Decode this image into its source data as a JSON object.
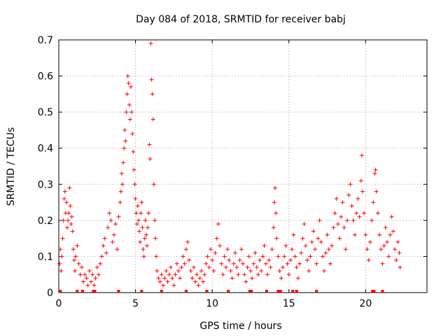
{
  "chart_data": {
    "type": "scatter",
    "title": "Day 084 of 2018, SRMTID for receiver babj",
    "xlabel": "GPS time / hours",
    "ylabel": "SRMTID / TECUs",
    "xlim": [
      0,
      24
    ],
    "ylim": [
      0,
      0.7
    ],
    "x_ticks": [
      0,
      5,
      10,
      15,
      20
    ],
    "x_tick_labels": [
      "0",
      "5",
      "10",
      "15",
      "20"
    ],
    "y_ticks": [
      0,
      0.1,
      0.2,
      0.3,
      0.4,
      0.5,
      0.6,
      0.7
    ],
    "y_tick_labels": [
      "0",
      "0.1",
      "0.2",
      "0.3",
      "0.4",
      "0.5",
      "0.6",
      "0.7"
    ],
    "grid": true,
    "marker": "+",
    "color": "#ff0000",
    "series": [
      {
        "name": "babj",
        "points": [
          [
            0.05,
            0.08
          ],
          [
            0.1,
            0.12
          ],
          [
            0.15,
            0.06
          ],
          [
            0.2,
            0.1
          ],
          [
            0.25,
            0.15
          ],
          [
            0.3,
            0.2
          ],
          [
            0.35,
            0.26
          ],
          [
            0.4,
            0.28
          ],
          [
            0.45,
            0.22
          ],
          [
            0.5,
            0.25
          ],
          [
            0.55,
            0.18
          ],
          [
            0.6,
            0.2
          ],
          [
            0.65,
            0.22
          ],
          [
            0.7,
            0.29
          ],
          [
            0.75,
            0.24
          ],
          [
            0.8,
            0.19
          ],
          [
            0.85,
            0.21
          ],
          [
            0.9,
            0.17
          ],
          [
            0.95,
            0.12
          ],
          [
            1.0,
            0.09
          ],
          [
            1.05,
            0.06
          ],
          [
            1.1,
            0.1
          ],
          [
            1.2,
            0.13
          ],
          [
            1.3,
            0.08
          ],
          [
            1.4,
            0.05
          ],
          [
            1.5,
            0.07
          ],
          [
            1.6,
            0.03
          ],
          [
            1.7,
            0.05
          ],
          [
            1.8,
            0.04
          ],
          [
            1.9,
            0.02
          ],
          [
            2.0,
            0.06
          ],
          [
            2.1,
            0.03
          ],
          [
            2.2,
            0.05
          ],
          [
            2.3,
            0.02
          ],
          [
            2.4,
            0.04
          ],
          [
            2.5,
            0.07
          ],
          [
            2.6,
            0.05
          ],
          [
            2.7,
            0.08
          ],
          [
            2.8,
            0.1
          ],
          [
            2.9,
            0.13
          ],
          [
            3.0,
            0.15
          ],
          [
            3.1,
            0.11
          ],
          [
            3.2,
            0.18
          ],
          [
            3.3,
            0.22
          ],
          [
            3.4,
            0.2
          ],
          [
            3.5,
            0.14
          ],
          [
            3.6,
            0.16
          ],
          [
            3.7,
            0.19
          ],
          [
            3.8,
            0.12
          ],
          [
            3.9,
            0.21
          ],
          [
            4.0,
            0.25
          ],
          [
            4.05,
            0.28
          ],
          [
            4.1,
            0.33
          ],
          [
            4.15,
            0.3
          ],
          [
            4.2,
            0.36
          ],
          [
            4.25,
            0.4
          ],
          [
            4.3,
            0.45
          ],
          [
            4.35,
            0.42
          ],
          [
            4.4,
            0.5
          ],
          [
            4.45,
            0.55
          ],
          [
            4.5,
            0.6
          ],
          [
            4.55,
            0.58
          ],
          [
            4.6,
            0.52
          ],
          [
            4.65,
            0.48
          ],
          [
            4.7,
            0.57
          ],
          [
            4.75,
            0.5
          ],
          [
            4.8,
            0.44
          ],
          [
            4.85,
            0.39
          ],
          [
            4.9,
            0.34
          ],
          [
            4.95,
            0.3
          ],
          [
            5.0,
            0.26
          ],
          [
            5.05,
            0.22
          ],
          [
            5.1,
            0.19
          ],
          [
            5.15,
            0.24
          ],
          [
            5.2,
            0.2
          ],
          [
            5.25,
            0.17
          ],
          [
            5.3,
            0.14
          ],
          [
            5.35,
            0.22
          ],
          [
            5.4,
            0.25
          ],
          [
            5.45,
            0.18
          ],
          [
            5.5,
            0.12
          ],
          [
            5.55,
            0.1
          ],
          [
            5.6,
            0.15
          ],
          [
            5.65,
            0.2
          ],
          [
            5.7,
            0.16
          ],
          [
            5.75,
            0.13
          ],
          [
            5.8,
            0.18
          ],
          [
            5.85,
            0.22
          ],
          [
            5.9,
            0.41
          ],
          [
            5.95,
            0.37
          ],
          [
            6.0,
            0.69
          ],
          [
            6.05,
            0.59
          ],
          [
            6.1,
            0.55
          ],
          [
            6.15,
            0.48
          ],
          [
            6.2,
            0.3
          ],
          [
            6.25,
            0.2
          ],
          [
            6.3,
            0.15
          ],
          [
            6.35,
            0.1
          ],
          [
            6.4,
            0.06
          ],
          [
            6.5,
            0.04
          ],
          [
            6.6,
            0.03
          ],
          [
            6.7,
            0.05
          ],
          [
            6.8,
            0.02
          ],
          [
            6.9,
            0.04
          ],
          [
            7.0,
            0.06
          ],
          [
            7.1,
            0.03
          ],
          [
            7.2,
            0.05
          ],
          [
            7.3,
            0.07
          ],
          [
            7.4,
            0.04
          ],
          [
            7.5,
            0.02
          ],
          [
            7.6,
            0.05
          ],
          [
            7.7,
            0.08
          ],
          [
            7.8,
            0.06
          ],
          [
            7.9,
            0.04
          ],
          [
            8.0,
            0.07
          ],
          [
            8.1,
            0.1
          ],
          [
            8.2,
            0.08
          ],
          [
            8.3,
            0.12
          ],
          [
            8.4,
            0.14
          ],
          [
            8.5,
            0.09
          ],
          [
            8.6,
            0.06
          ],
          [
            8.7,
            0.04
          ],
          [
            8.8,
            0.07
          ],
          [
            8.9,
            0.03
          ],
          [
            9.0,
            0.05
          ],
          [
            9.1,
            0.02
          ],
          [
            9.2,
            0.04
          ],
          [
            9.3,
            0.06
          ],
          [
            9.4,
            0.03
          ],
          [
            9.5,
            0.05
          ],
          [
            9.6,
            0.08
          ],
          [
            9.7,
            0.1
          ],
          [
            9.8,
            0.07
          ],
          [
            9.9,
            0.12
          ],
          [
            10.0,
            0.09
          ],
          [
            10.1,
            0.06
          ],
          [
            10.2,
            0.11
          ],
          [
            10.3,
            0.15
          ],
          [
            10.4,
            0.19
          ],
          [
            10.5,
            0.13
          ],
          [
            10.6,
            0.08
          ],
          [
            10.7,
            0.05
          ],
          [
            10.8,
            0.1
          ],
          [
            10.9,
            0.07
          ],
          [
            11.0,
            0.12
          ],
          [
            11.1,
            0.09
          ],
          [
            11.2,
            0.06
          ],
          [
            11.3,
            0.04
          ],
          [
            11.4,
            0.08
          ],
          [
            11.5,
            0.11
          ],
          [
            11.6,
            0.07
          ],
          [
            11.7,
            0.05
          ],
          [
            11.8,
            0.09
          ],
          [
            11.9,
            0.12
          ],
          [
            12.0,
            0.08
          ],
          [
            12.1,
            0.05
          ],
          [
            12.2,
            0.03
          ],
          [
            12.3,
            0.07
          ],
          [
            12.4,
            0.1
          ],
          [
            12.5,
            0.06
          ],
          [
            12.6,
            0.04
          ],
          [
            12.7,
            0.08
          ],
          [
            12.8,
            0.11
          ],
          [
            12.9,
            0.07
          ],
          [
            13.0,
            0.05
          ],
          [
            13.1,
            0.09
          ],
          [
            13.2,
            0.06
          ],
          [
            13.3,
            0.1
          ],
          [
            13.4,
            0.13
          ],
          [
            13.5,
            0.08
          ],
          [
            13.6,
            0.05
          ],
          [
            13.7,
            0.09
          ],
          [
            13.8,
            0.07
          ],
          [
            13.9,
            0.12
          ],
          [
            14.0,
            0.18
          ],
          [
            14.05,
            0.25
          ],
          [
            14.1,
            0.29
          ],
          [
            14.15,
            0.22
          ],
          [
            14.2,
            0.15
          ],
          [
            14.3,
            0.1
          ],
          [
            14.4,
            0.06
          ],
          [
            14.5,
            0.04
          ],
          [
            14.6,
            0.07
          ],
          [
            14.7,
            0.1
          ],
          [
            14.8,
            0.13
          ],
          [
            14.9,
            0.08
          ],
          [
            15.0,
            0.05
          ],
          [
            15.1,
            0.09
          ],
          [
            15.2,
            0.12
          ],
          [
            15.3,
            0.16
          ],
          [
            15.4,
            0.1
          ],
          [
            15.5,
            0.07
          ],
          [
            15.6,
            0.04
          ],
          [
            15.7,
            0.08
          ],
          [
            15.8,
            0.11
          ],
          [
            15.9,
            0.15
          ],
          [
            16.0,
            0.19
          ],
          [
            16.1,
            0.13
          ],
          [
            16.2,
            0.09
          ],
          [
            16.3,
            0.06
          ],
          [
            16.4,
            0.1
          ],
          [
            16.5,
            0.14
          ],
          [
            16.6,
            0.17
          ],
          [
            16.7,
            0.12
          ],
          [
            16.8,
            0.08
          ],
          [
            16.9,
            0.15
          ],
          [
            17.0,
            0.2
          ],
          [
            17.1,
            0.14
          ],
          [
            17.2,
            0.1
          ],
          [
            17.3,
            0.06
          ],
          [
            17.4,
            0.11
          ],
          [
            17.5,
            0.16
          ],
          [
            17.6,
            0.12
          ],
          [
            17.7,
            0.08
          ],
          [
            17.8,
            0.13
          ],
          [
            17.9,
            0.18
          ],
          [
            18.0,
            0.22
          ],
          [
            18.1,
            0.26
          ],
          [
            18.2,
            0.19
          ],
          [
            18.3,
            0.15
          ],
          [
            18.4,
            0.21
          ],
          [
            18.5,
            0.25
          ],
          [
            18.6,
            0.18
          ],
          [
            18.7,
            0.12
          ],
          [
            18.8,
            0.2
          ],
          [
            18.9,
            0.27
          ],
          [
            19.0,
            0.3
          ],
          [
            19.1,
            0.24
          ],
          [
            19.2,
            0.2
          ],
          [
            19.3,
            0.16
          ],
          [
            19.4,
            0.22
          ],
          [
            19.5,
            0.26
          ],
          [
            19.6,
            0.21
          ],
          [
            19.7,
            0.31
          ],
          [
            19.75,
            0.38
          ],
          [
            19.8,
            0.28
          ],
          [
            19.9,
            0.22
          ],
          [
            20.0,
            0.16
          ],
          [
            20.1,
            0.12
          ],
          [
            20.2,
            0.09
          ],
          [
            20.3,
            0.14
          ],
          [
            20.4,
            0.2
          ],
          [
            20.5,
            0.25
          ],
          [
            20.6,
            0.33
          ],
          [
            20.65,
            0.34
          ],
          [
            20.7,
            0.28
          ],
          [
            20.8,
            0.22
          ],
          [
            20.9,
            0.16
          ],
          [
            21.0,
            0.12
          ],
          [
            21.1,
            0.08
          ],
          [
            21.2,
            0.13
          ],
          [
            21.3,
            0.18
          ],
          [
            21.4,
            0.14
          ],
          [
            21.5,
            0.1
          ],
          [
            21.6,
            0.16
          ],
          [
            21.7,
            0.21
          ],
          [
            21.8,
            0.17
          ],
          [
            21.9,
            0.12
          ],
          [
            22.0,
            0.09
          ],
          [
            22.1,
            0.14
          ],
          [
            22.2,
            0.11
          ],
          [
            22.25,
            0.07
          ]
        ],
        "zero_points": [
          0.1,
          1.2,
          1.55,
          2.25,
          2.35,
          3.9,
          5.4,
          6.7,
          8.3,
          9.65,
          11.05,
          12.45,
          12.55,
          13.55,
          14.3,
          14.45,
          15.25,
          15.5,
          16.8,
          20.45,
          20.55,
          21.1
        ]
      }
    ]
  }
}
